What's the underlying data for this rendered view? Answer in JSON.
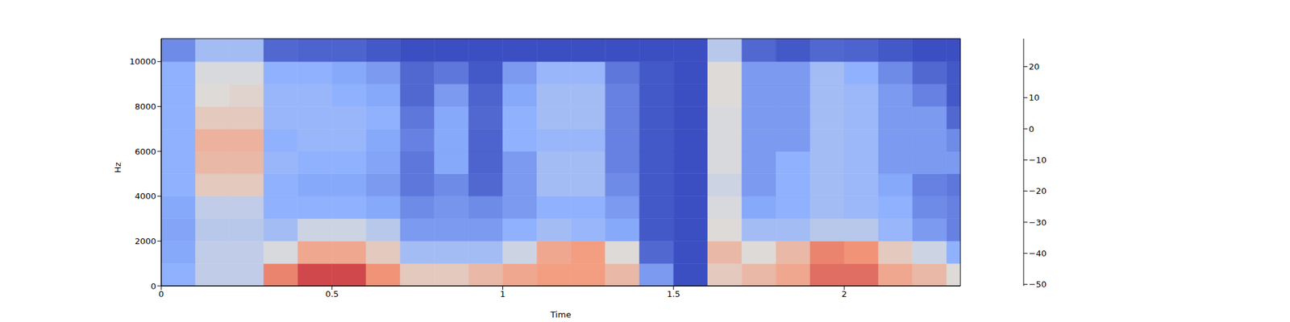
{
  "chart_data": {
    "type": "heatmap",
    "x_label": "Time",
    "y_label": "Hz",
    "color": "coolwarm",
    "xlim": [
      0,
      2.34
    ],
    "xticks": [
      0,
      0.5,
      1,
      1.5,
      2
    ],
    "ylim": [
      0,
      11025
    ],
    "yticks": [
      0,
      2000,
      4000,
      6000,
      8000,
      10000
    ],
    "x_edges": [
      0,
      0.1,
      0.2,
      0.3,
      0.4,
      0.5,
      0.6,
      0.7,
      0.8,
      0.9,
      1.0,
      1.1,
      1.2,
      1.3,
      1.4,
      1.5,
      1.6,
      1.7,
      1.8,
      1.9,
      2.0,
      2.1,
      2.2,
      2.3,
      2.34
    ],
    "y_edges": [
      0,
      1000,
      2000,
      3000,
      4000,
      5000,
      6000,
      7000,
      8000,
      9000,
      10000,
      11025
    ],
    "values": [
      [
        -30,
        -32,
        -33,
        -32,
        -30,
        -30,
        -30,
        -30,
        -30,
        -30,
        -38
      ],
      [
        -18,
        -18,
        -20,
        -18,
        -5,
        0,
        2,
        -5,
        -10,
        -12,
        -25
      ],
      [
        -18,
        -18,
        -20,
        -18,
        -5,
        0,
        2,
        -5,
        -8,
        -12,
        -25
      ],
      [
        12,
        -12,
        -25,
        -30,
        -30,
        -28,
        -30,
        -28,
        -28,
        -30,
        -45
      ],
      [
        20,
        5,
        -15,
        -30,
        -32,
        -30,
        -28,
        -28,
        -28,
        -30,
        -46
      ],
      [
        20,
        5,
        -15,
        -30,
        -32,
        -30,
        -28,
        -28,
        -30,
        -32,
        -46
      ],
      [
        10,
        -5,
        -20,
        -32,
        -35,
        -33,
        -32,
        -30,
        -32,
        -35,
        -48
      ],
      [
        -5,
        -25,
        -35,
        -38,
        -42,
        -42,
        -40,
        -42,
        -45,
        -45,
        -50
      ],
      [
        -5,
        -25,
        -35,
        -36,
        -38,
        -32,
        -32,
        -32,
        -35,
        -42,
        -50
      ],
      [
        0,
        -25,
        -35,
        -38,
        -45,
        -46,
        -46,
        -45,
        -46,
        -48,
        -50
      ],
      [
        5,
        -15,
        -30,
        -35,
        -35,
        -35,
        -30,
        -30,
        -32,
        -35,
        -50
      ],
      [
        8,
        5,
        -25,
        -30,
        -25,
        -25,
        -28,
        -25,
        -25,
        -28,
        -50
      ],
      [
        8,
        8,
        -28,
        -30,
        -25,
        -25,
        -28,
        -25,
        -25,
        -28,
        -50
      ],
      [
        0,
        -10,
        -32,
        -35,
        -38,
        -40,
        -40,
        -40,
        -40,
        -42,
        -50
      ],
      [
        -35,
        -45,
        -48,
        -48,
        -48,
        -48,
        -48,
        -48,
        -48,
        -48,
        -50
      ],
      [
        -50,
        -50,
        -50,
        -50,
        -50,
        -50,
        -50,
        -50,
        -50,
        -50,
        -50
      ],
      [
        -5,
        0,
        -10,
        -12,
        -15,
        -12,
        -12,
        -12,
        -10,
        -10,
        -20
      ],
      [
        0,
        -10,
        -25,
        -32,
        -35,
        -35,
        -35,
        -35,
        -35,
        -35,
        -45
      ],
      [
        5,
        0,
        -25,
        -30,
        -30,
        -30,
        -35,
        -35,
        -35,
        -35,
        -48
      ],
      [
        15,
        12,
        -20,
        -25,
        -25,
        -25,
        -25,
        -25,
        -25,
        -25,
        -45
      ],
      [
        15,
        10,
        -20,
        -27,
        -27,
        -27,
        -27,
        -27,
        -27,
        -30,
        -46
      ],
      [
        5,
        -5,
        -28,
        -30,
        -32,
        -35,
        -35,
        -35,
        -35,
        -38,
        -48
      ],
      [
        0,
        -15,
        -35,
        -38,
        -40,
        -35,
        -35,
        -35,
        -40,
        -45,
        -50
      ],
      [
        -10,
        -30,
        -40,
        -40,
        -42,
        -35,
        -38,
        -45,
        -48,
        -48,
        -50
      ]
    ],
    "colorbar": {
      "range": [
        -50.5,
        29
      ],
      "ticks": [
        {
          "value": -50,
          "label": "−50"
        },
        {
          "value": -40,
          "label": "−40"
        },
        {
          "value": -30,
          "label": "−30"
        },
        {
          "value": -20,
          "label": "−20"
        },
        {
          "value": -10,
          "label": "−10"
        },
        0,
        10,
        20
      ]
    }
  }
}
